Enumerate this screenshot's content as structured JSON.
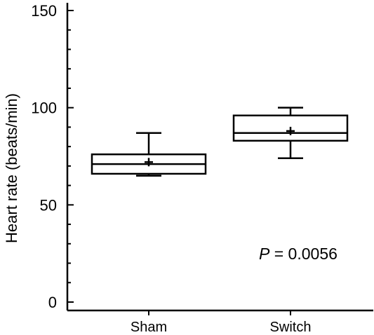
{
  "chart_data": {
    "type": "box",
    "title": "",
    "xlabel": "",
    "ylabel": "Heart rate (beats/min)",
    "ylim": [
      0,
      150
    ],
    "y_ticks": [
      "0",
      "50",
      "100",
      "150"
    ],
    "categories": [
      "Sham",
      "Switch"
    ],
    "boxes": [
      {
        "category": "Sham",
        "whisker_low": 65,
        "q1": 66,
        "median": 71,
        "q3": 76,
        "whisker_high": 87,
        "mean": 72
      },
      {
        "category": "Switch",
        "whisker_low": 74,
        "q1": 83,
        "median": 87,
        "q3": 96,
        "whisker_high": 100,
        "mean": 88
      }
    ],
    "annotation": {
      "italic_part": "P",
      "rest": " = 0.0056"
    },
    "grid": false,
    "legend": "none"
  }
}
